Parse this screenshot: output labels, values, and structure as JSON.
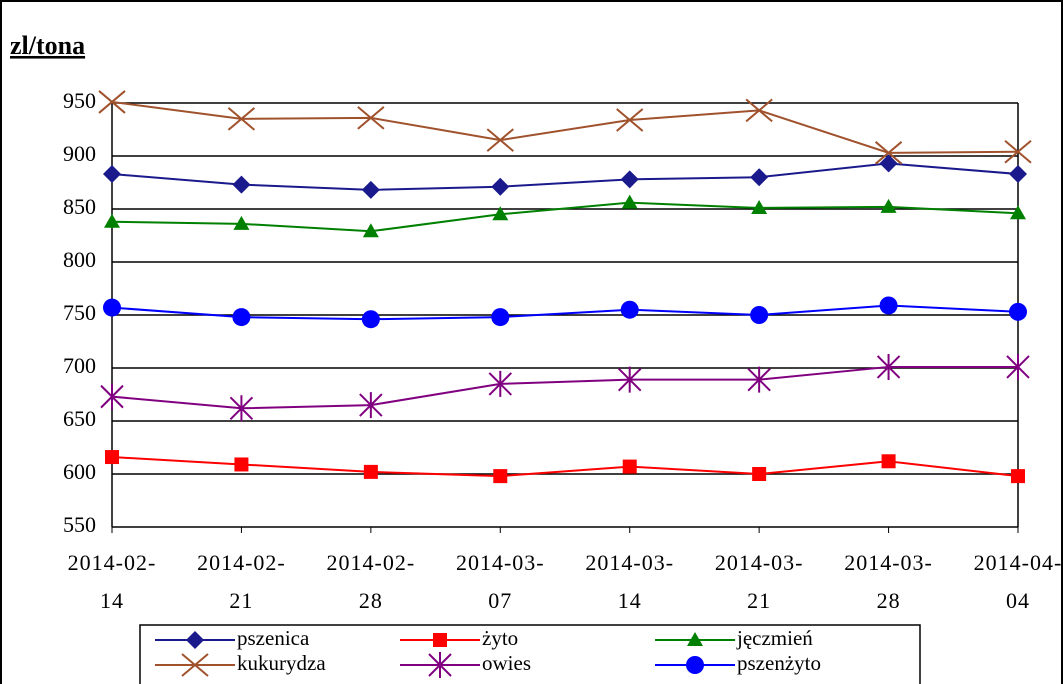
{
  "chart_data": {
    "type": "line",
    "title": "zl/tona",
    "categories": [
      "2014-02-14",
      "2014-02-21",
      "2014-02-28",
      "2014-03-07",
      "2014-03-14",
      "2014-03-21",
      "2014-03-28",
      "2014-04-04"
    ],
    "ylim": [
      550,
      950
    ],
    "yticks": [
      550,
      600,
      650,
      700,
      750,
      800,
      850,
      900,
      950
    ],
    "grid": true,
    "series": [
      {
        "name": "pszenica",
        "color": "#1a1a8c",
        "marker": "diamond",
        "values": [
          883,
          873,
          868,
          871,
          878,
          880,
          893,
          883
        ]
      },
      {
        "name": "żyto",
        "color": "#ff0000",
        "marker": "square",
        "values": [
          616,
          609,
          602,
          598,
          607,
          600,
          612,
          598
        ]
      },
      {
        "name": "jęczmień",
        "color": "#008000",
        "marker": "triangle",
        "values": [
          838,
          836,
          829,
          845,
          856,
          851,
          852,
          846
        ]
      },
      {
        "name": "kukurydza",
        "color": "#a0522d",
        "marker": "x",
        "values": [
          951,
          935,
          936,
          915,
          934,
          943,
          903,
          904
        ]
      },
      {
        "name": "owies",
        "color": "#800080",
        "marker": "star",
        "values": [
          673,
          662,
          665,
          685,
          689,
          689,
          701,
          701
        ]
      },
      {
        "name": "pszenżyto",
        "color": "#0000ff",
        "marker": "circle",
        "values": [
          757,
          748,
          746,
          748,
          755,
          750,
          759,
          753
        ]
      }
    ]
  }
}
